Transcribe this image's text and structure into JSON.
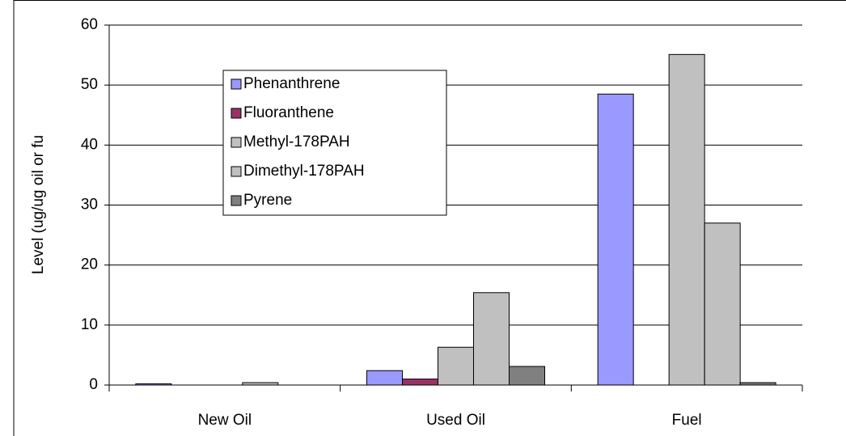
{
  "chart_data": {
    "type": "bar",
    "y_label": "Level (ug/ug oil or fu",
    "categories": [
      "New Oil",
      "Used Oil",
      "Fuel"
    ],
    "series": [
      {
        "name": "Phenanthrene",
        "color": "#9999ff",
        "values": [
          0.2,
          2.4,
          48.5
        ]
      },
      {
        "name": "Fluoranthene",
        "color": "#993366",
        "values": [
          0,
          1.0,
          0
        ]
      },
      {
        "name": "Methyl-178PAH",
        "color": "#c0c0c0",
        "values": [
          0,
          6.3,
          55.1
        ]
      },
      {
        "name": "Dimethyl-178PAH",
        "color": "#c0c0c0",
        "values": [
          0.4,
          15.4,
          27
        ]
      },
      {
        "name": "Pyrene",
        "color": "#808080",
        "values": [
          0,
          3.1,
          0.4
        ]
      }
    ],
    "ylim": [
      0,
      60
    ],
    "yticks": [
      0,
      10,
      20,
      30,
      40,
      50,
      60
    ],
    "grid": true,
    "legend": "upper-left"
  }
}
